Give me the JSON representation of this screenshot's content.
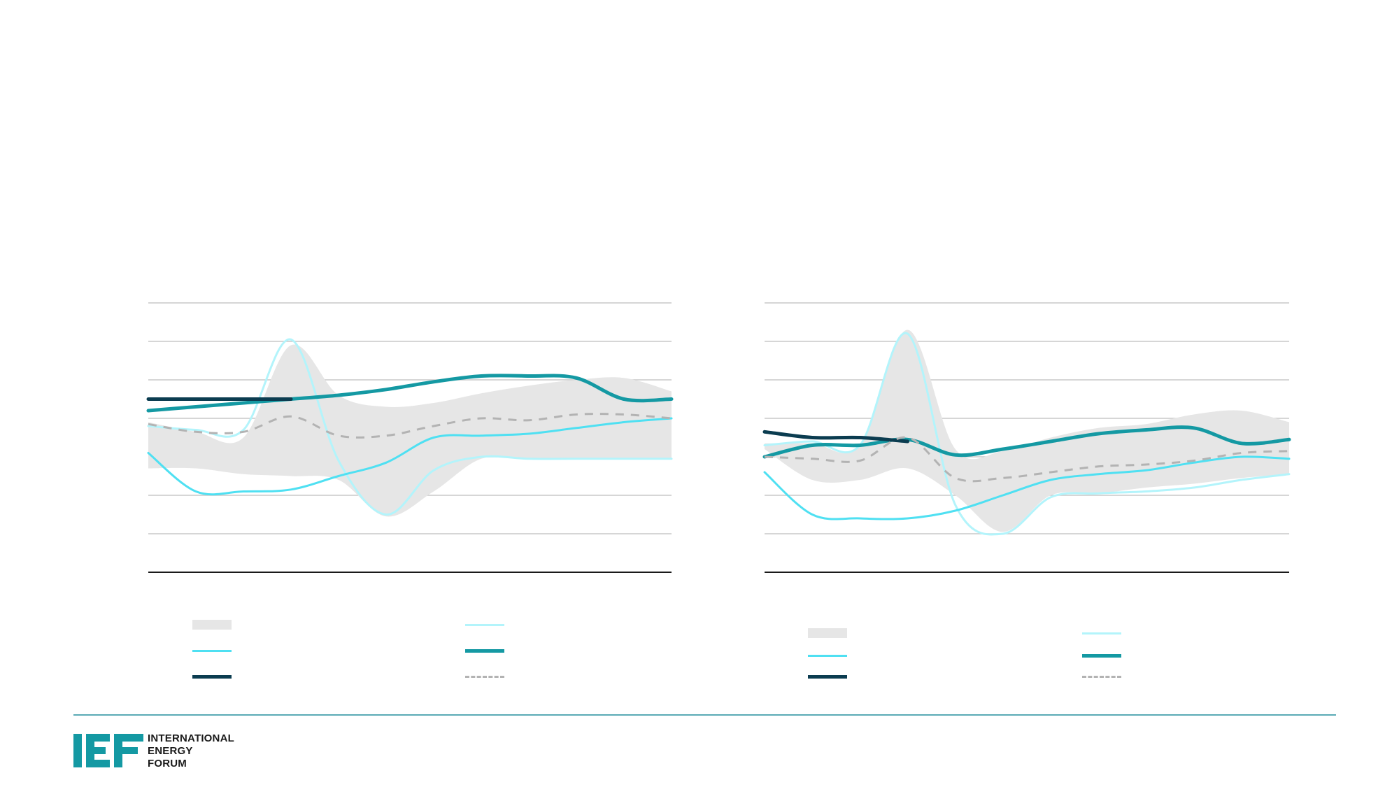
{
  "colors": {
    "band": "#e6e6e6",
    "light_cyan": "#b3f4fb",
    "cyan": "#4fe0f2",
    "teal": "#1499a3",
    "navy": "#0b3c50",
    "dash": "#b3b3b3",
    "grid": "#c8c8c8",
    "axis": "#1a1a1a",
    "rule": "#5aaab5"
  },
  "logo": {
    "mark": "IEF",
    "lines": [
      "INTERNATIONAL",
      "ENERGY",
      "FORUM"
    ]
  },
  "chart_data": [
    {
      "type": "line",
      "grid": true,
      "ylim": [
        0,
        7
      ],
      "x": [
        0,
        1,
        2,
        3,
        4,
        5,
        6,
        7,
        8,
        9,
        10,
        11
      ],
      "band": {
        "lower": [
          2.7,
          2.7,
          2.55,
          2.5,
          2.4,
          1.45,
          2.1,
          2.95,
          2.95,
          2.95,
          2.95,
          2.95
        ],
        "upper": [
          3.9,
          3.65,
          3.5,
          5.9,
          4.6,
          4.3,
          4.4,
          4.65,
          4.85,
          5.0,
          5.05,
          4.7
        ]
      },
      "series": [
        {
          "role": "light_cyan",
          "values": [
            3.8,
            3.7,
            3.7,
            6.05,
            2.9,
            1.5,
            2.65,
            3.0,
            2.95,
            2.95,
            2.95,
            2.95
          ],
          "width": 3
        },
        {
          "role": "cyan",
          "values": [
            3.1,
            2.1,
            2.1,
            2.15,
            2.5,
            2.85,
            3.5,
            3.55,
            3.6,
            3.75,
            3.9,
            4.0
          ],
          "width": 3
        },
        {
          "role": "teal",
          "values": [
            4.2,
            4.3,
            4.4,
            4.5,
            4.6,
            4.75,
            4.95,
            5.1,
            5.1,
            5.05,
            4.5,
            4.5
          ],
          "width": 5
        },
        {
          "role": "navy",
          "values": [
            4.5,
            4.5,
            4.5,
            4.5,
            null,
            null,
            null,
            null,
            null,
            null,
            null,
            null
          ],
          "width": 5
        },
        {
          "role": "dash",
          "values": [
            3.85,
            3.65,
            3.65,
            4.05,
            3.55,
            3.55,
            3.8,
            4.0,
            3.95,
            4.1,
            4.1,
            4.0
          ],
          "width": 3,
          "dashed": true
        }
      ]
    },
    {
      "type": "line",
      "grid": true,
      "ylim": [
        0,
        7
      ],
      "x": [
        0,
        1,
        2,
        3,
        4,
        5,
        6,
        7,
        8,
        9,
        10,
        11
      ],
      "band": {
        "lower": [
          3.2,
          2.4,
          2.4,
          2.7,
          2.0,
          1.05,
          2.0,
          2.05,
          2.2,
          2.3,
          2.45,
          2.55
        ],
        "upper": [
          3.35,
          3.35,
          3.3,
          6.3,
          3.2,
          3.15,
          3.5,
          3.75,
          3.85,
          4.1,
          4.2,
          3.9
        ]
      },
      "series": [
        {
          "role": "light_cyan",
          "values": [
            3.3,
            3.4,
            3.3,
            6.2,
            1.75,
            1.0,
            1.95,
            2.05,
            2.1,
            2.2,
            2.4,
            2.55
          ],
          "width": 3
        },
        {
          "role": "cyan",
          "values": [
            2.6,
            1.5,
            1.4,
            1.4,
            1.6,
            2.0,
            2.4,
            2.55,
            2.65,
            2.85,
            3.0,
            2.95
          ],
          "width": 3
        },
        {
          "role": "teal",
          "values": [
            3.0,
            3.3,
            3.3,
            3.45,
            3.05,
            3.2,
            3.4,
            3.6,
            3.7,
            3.75,
            3.35,
            3.45
          ],
          "width": 5
        },
        {
          "role": "navy",
          "values": [
            3.65,
            3.5,
            3.5,
            3.4,
            null,
            null,
            null,
            null,
            null,
            null,
            null,
            null
          ],
          "width": 5
        },
        {
          "role": "dash",
          "values": [
            3.0,
            2.95,
            2.9,
            3.5,
            2.45,
            2.45,
            2.6,
            2.75,
            2.8,
            2.9,
            3.1,
            3.15
          ],
          "width": 3,
          "dashed": true
        }
      ]
    }
  ],
  "legends": [
    {
      "items": [
        {
          "kind": "band",
          "label": ""
        },
        {
          "kind": "light_cyan",
          "label": ""
        },
        {
          "kind": "cyan",
          "label": ""
        },
        {
          "kind": "teal",
          "label": ""
        },
        {
          "kind": "navy",
          "label": ""
        },
        {
          "kind": "dash",
          "label": ""
        }
      ]
    },
    {
      "items": [
        {
          "kind": "band",
          "label": ""
        },
        {
          "kind": "light_cyan",
          "label": ""
        },
        {
          "kind": "cyan",
          "label": ""
        },
        {
          "kind": "teal",
          "label": ""
        },
        {
          "kind": "navy",
          "label": ""
        },
        {
          "kind": "dash",
          "label": ""
        }
      ]
    }
  ]
}
